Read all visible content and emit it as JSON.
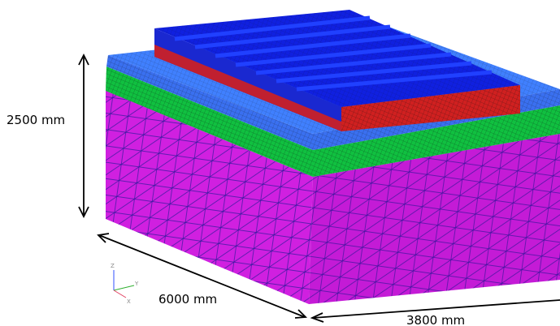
{
  "dimensions": {
    "height": "2500 mm",
    "length": "6000 mm",
    "width": "3800 mm"
  },
  "axes": {
    "z": "Z",
    "y": "Y",
    "x": "X"
  }
}
